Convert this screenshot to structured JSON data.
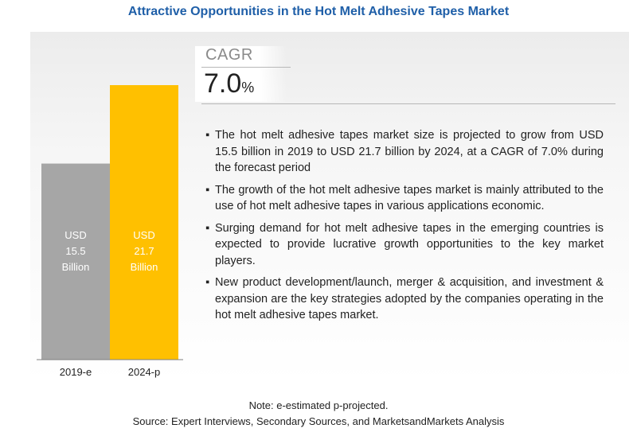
{
  "title": "Attractive Opportunities in the Hot Melt Adhesive Tapes Market",
  "cagr": {
    "label": "CAGR",
    "value": "7.0",
    "unit": "%"
  },
  "bullets": [
    "The hot melt adhesive tapes market size is projected to grow from USD 15.5 billion in 2019 to USD 21.7 billion by 2024, at a CAGR of 7.0% during the forecast period",
    "The growth of the hot melt adhesive tapes market is mainly attributed to the use of hot melt adhesive tapes in various applications economic.",
    "Surging demand for hot melt adhesive tapes in the emerging countries is expected to provide lucrative growth opportunities to the key market players.",
    "New product development/launch, merger & acquisition, and investment & expansion are the key strategies adopted by the companies operating in the hot melt adhesive tapes market."
  ],
  "footer": {
    "note": "Note: e-estimated p-projected.",
    "source": "Source: Expert Interviews, Secondary Sources, and MarketsandMarkets Analysis"
  },
  "chart_data": {
    "type": "bar",
    "categories": [
      "2019-e",
      "2024-p"
    ],
    "values": [
      15.5,
      21.7
    ],
    "bar_labels": [
      [
        "USD",
        "15.5",
        "Billion"
      ],
      [
        "USD",
        "21.7",
        "Billion"
      ]
    ],
    "colors": [
      "#a6a6a6",
      "#ffc000"
    ],
    "label_color": "#ffffff",
    "baseline_color": "#7f7f7f"
  }
}
